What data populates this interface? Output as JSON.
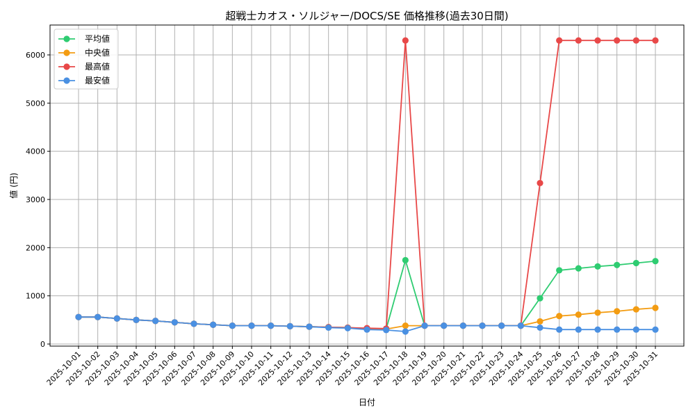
{
  "chart_data": {
    "type": "line",
    "title": "超戦士カオス・ソルジャー/DOCS/SE 価格推移(過去30日間)",
    "xlabel": "日付",
    "ylabel": "値 (円)",
    "ylim": [
      0,
      6500
    ],
    "yticks": [
      0,
      1000,
      2000,
      3000,
      4000,
      5000,
      6000
    ],
    "grid": true,
    "legend_position": "top-left",
    "categories": [
      "2025-10-01",
      "2025-10-02",
      "2025-10-03",
      "2025-10-04",
      "2025-10-05",
      "2025-10-06",
      "2025-10-07",
      "2025-10-08",
      "2025-10-09",
      "2025-10-10",
      "2025-10-11",
      "2025-10-12",
      "2025-10-13",
      "2025-10-14",
      "2025-10-15",
      "2025-10-16",
      "2025-10-17",
      "2025-10-18",
      "2025-10-19",
      "2025-10-20",
      "2025-10-21",
      "2025-10-22",
      "2025-10-23",
      "2025-10-24",
      "2025-10-25",
      "2025-10-26",
      "2025-10-27",
      "2025-10-28",
      "2025-10-29",
      "2025-10-30",
      "2025-10-31"
    ],
    "series": [
      {
        "name": "平均値",
        "color": "#2ecc71",
        "values": [
          560,
          560,
          530,
          500,
          480,
          450,
          420,
          400,
          380,
          380,
          380,
          370,
          360,
          350,
          340,
          320,
          310,
          1740,
          380,
          380,
          380,
          380,
          380,
          380,
          950,
          1530,
          1570,
          1610,
          1640,
          1680,
          1720
        ]
      },
      {
        "name": "中央値",
        "color": "#f39c12",
        "values": [
          560,
          560,
          530,
          500,
          480,
          450,
          420,
          400,
          380,
          380,
          380,
          370,
          360,
          350,
          340,
          320,
          310,
          380,
          380,
          380,
          380,
          380,
          380,
          380,
          470,
          580,
          610,
          650,
          680,
          720,
          750
        ]
      },
      {
        "name": "最高値",
        "color": "#e84848",
        "values": [
          560,
          560,
          530,
          500,
          480,
          450,
          420,
          400,
          380,
          380,
          380,
          370,
          360,
          350,
          340,
          330,
          320,
          6300,
          380,
          380,
          380,
          380,
          380,
          380,
          3340,
          6300,
          6300,
          6300,
          6300,
          6300,
          6300
        ]
      },
      {
        "name": "最安値",
        "color": "#4a90e2",
        "values": [
          560,
          560,
          530,
          500,
          480,
          450,
          420,
          400,
          380,
          380,
          380,
          370,
          360,
          340,
          330,
          300,
          290,
          260,
          380,
          380,
          380,
          380,
          380,
          380,
          340,
          300,
          300,
          300,
          300,
          300,
          300
        ]
      }
    ]
  }
}
